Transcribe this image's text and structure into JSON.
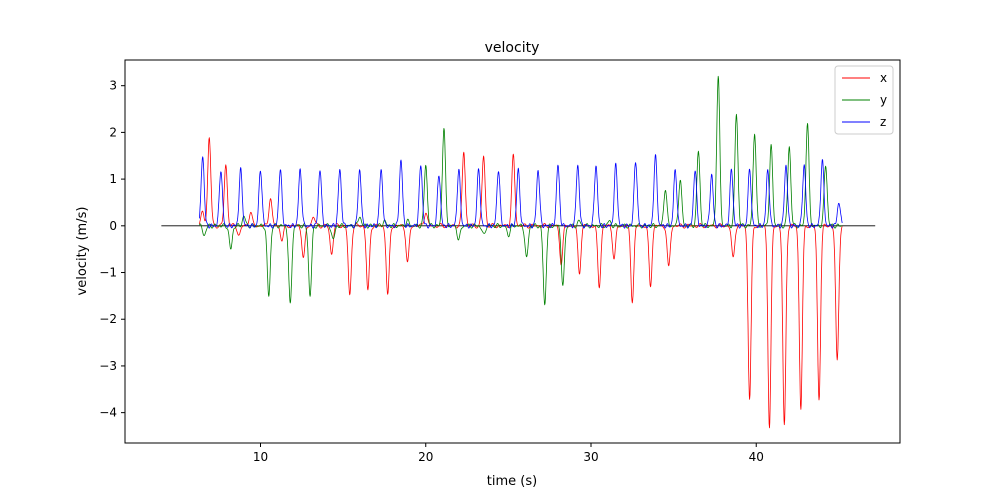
{
  "chart_data": {
    "type": "line",
    "title": "velocity",
    "xlabel": "time (s)",
    "ylabel": "velocity (m/s)",
    "xlim": [
      1.8,
      48.7
    ],
    "ylim": [
      -4.65,
      3.55
    ],
    "xticks": [
      10,
      20,
      30,
      40
    ],
    "xtick_labels": [
      "10",
      "20",
      "30",
      "40"
    ],
    "yticks": [
      -4,
      -3,
      -2,
      -1,
      0,
      1,
      2,
      3
    ],
    "ytick_labels": [
      "−4",
      "−3",
      "−2",
      "−1",
      "0",
      "1",
      "2",
      "3"
    ],
    "grid": false,
    "legend_position": "top-right",
    "zero_line": {
      "x_start": 4.0,
      "x_end": 47.2,
      "color": "#000000"
    },
    "series": [
      {
        "name": "x",
        "color": "#ff0000",
        "peaks": [
          [
            6.5,
            0.3
          ],
          [
            6.9,
            1.9
          ],
          [
            7.9,
            1.3
          ],
          [
            8.7,
            -0.2
          ],
          [
            9.4,
            0.3
          ],
          [
            10.6,
            0.6
          ],
          [
            11.3,
            -0.3
          ],
          [
            12.6,
            -0.7
          ],
          [
            13.2,
            0.2
          ],
          [
            14.3,
            -0.6
          ],
          [
            15.4,
            -1.5
          ],
          [
            16.5,
            -1.4
          ],
          [
            17.7,
            -1.5
          ],
          [
            18.9,
            -0.8
          ],
          [
            20.0,
            0.3
          ],
          [
            22.3,
            1.6
          ],
          [
            23.5,
            1.5
          ],
          [
            25.3,
            1.5
          ],
          [
            28.2,
            -0.8
          ],
          [
            29.3,
            -1.0
          ],
          [
            30.5,
            -1.3
          ],
          [
            31.4,
            -0.7
          ],
          [
            32.5,
            -1.6
          ],
          [
            33.6,
            -1.3
          ],
          [
            34.7,
            -0.9
          ],
          [
            38.6,
            -0.7
          ],
          [
            39.6,
            -3.7
          ],
          [
            40.8,
            -4.3
          ],
          [
            41.7,
            -4.3
          ],
          [
            42.7,
            -3.9
          ],
          [
            43.8,
            -3.7
          ],
          [
            44.9,
            -2.9
          ]
        ]
      },
      {
        "name": "y",
        "color": "#008000",
        "peaks": [
          [
            6.6,
            -0.2
          ],
          [
            8.2,
            -0.5
          ],
          [
            9.0,
            0.2
          ],
          [
            10.5,
            -1.5
          ],
          [
            11.8,
            -1.7
          ],
          [
            13.0,
            -1.5
          ],
          [
            14.4,
            -0.3
          ],
          [
            16.0,
            0.2
          ],
          [
            17.5,
            0.1
          ],
          [
            18.9,
            0.1
          ],
          [
            20.0,
            1.3
          ],
          [
            21.1,
            2.1
          ],
          [
            22.0,
            -0.3
          ],
          [
            23.5,
            -0.2
          ],
          [
            25.0,
            -0.2
          ],
          [
            26.1,
            -0.7
          ],
          [
            27.2,
            -1.7
          ],
          [
            28.3,
            -1.3
          ],
          [
            29.3,
            0.1
          ],
          [
            31.1,
            0.1
          ],
          [
            34.5,
            0.8
          ],
          [
            35.4,
            1.0
          ],
          [
            36.5,
            1.6
          ],
          [
            37.7,
            3.2
          ],
          [
            38.8,
            2.4
          ],
          [
            39.9,
            2.0
          ],
          [
            40.9,
            1.7
          ],
          [
            42.0,
            1.7
          ],
          [
            43.1,
            2.2
          ],
          [
            44.2,
            1.3
          ]
        ]
      },
      {
        "name": "z",
        "color": "#0000ff",
        "peaks": [
          [
            6.5,
            1.5
          ],
          [
            7.6,
            1.2
          ],
          [
            8.8,
            1.2
          ],
          [
            10.0,
            1.2
          ],
          [
            11.2,
            1.2
          ],
          [
            12.4,
            1.2
          ],
          [
            13.6,
            1.2
          ],
          [
            14.8,
            1.2
          ],
          [
            16.0,
            1.2
          ],
          [
            17.3,
            1.2
          ],
          [
            18.5,
            1.4
          ],
          [
            19.7,
            1.3
          ],
          [
            20.8,
            1.1
          ],
          [
            22.0,
            1.2
          ],
          [
            23.2,
            1.2
          ],
          [
            24.4,
            1.2
          ],
          [
            25.6,
            1.2
          ],
          [
            26.8,
            1.2
          ],
          [
            28.0,
            1.3
          ],
          [
            29.2,
            1.3
          ],
          [
            30.3,
            1.3
          ],
          [
            31.5,
            1.3
          ],
          [
            32.7,
            1.4
          ],
          [
            33.9,
            1.5
          ],
          [
            35.1,
            1.2
          ],
          [
            36.3,
            1.2
          ],
          [
            37.3,
            1.1
          ],
          [
            38.5,
            1.2
          ],
          [
            39.6,
            1.2
          ],
          [
            40.7,
            1.2
          ],
          [
            41.8,
            1.3
          ],
          [
            42.9,
            1.3
          ],
          [
            44.0,
            1.4
          ],
          [
            45.0,
            0.5
          ]
        ]
      }
    ]
  }
}
